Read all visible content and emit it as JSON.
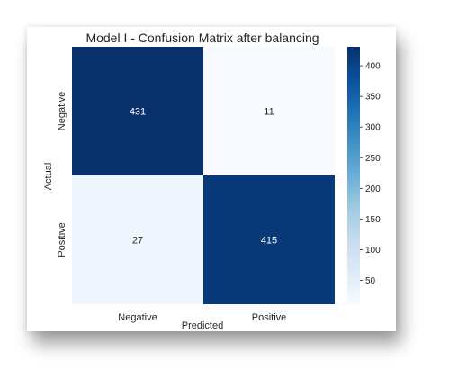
{
  "chart_data": {
    "type": "heatmap",
    "title": "Model I - Confusion Matrix after balancing",
    "xlabel": "Predicted",
    "ylabel": "Actual",
    "x_categories": [
      "Negative",
      "Positive"
    ],
    "y_categories": [
      "Negative",
      "Positive"
    ],
    "values": [
      [
        431,
        11
      ],
      [
        27,
        415
      ]
    ],
    "colormap": "Blues",
    "colorbar": {
      "min": 11,
      "max": 431,
      "ticks": [
        50,
        100,
        150,
        200,
        250,
        300,
        350,
        400
      ]
    },
    "colors": {
      "low": "#f7fbff",
      "high": "#08306b"
    }
  }
}
